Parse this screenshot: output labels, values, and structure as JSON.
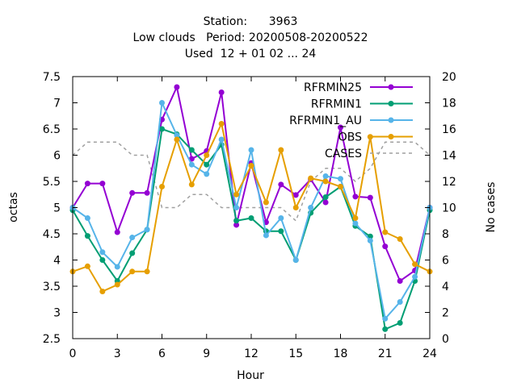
{
  "chart_data": {
    "type": "line",
    "title_lines": [
      "Station:      3963",
      "Low clouds   Period: 20200508-20200522",
      "Used  12 + 01 02 ... 24"
    ],
    "xlabel": "Hour",
    "ylabel": "octas",
    "y2label": "No cases",
    "xlim": [
      0,
      24
    ],
    "ylim": [
      2.5,
      7.5
    ],
    "y2lim": [
      0,
      20
    ],
    "xticks": [
      0,
      3,
      6,
      9,
      12,
      15,
      18,
      21,
      24
    ],
    "yticks": [
      2.5,
      3,
      3.5,
      4,
      4.5,
      5,
      5.5,
      6,
      6.5,
      7,
      7.5
    ],
    "y2ticks": [
      0,
      2,
      4,
      6,
      8,
      10,
      12,
      14,
      16,
      18,
      20
    ],
    "grid": false,
    "legend_position": "top-right",
    "x": [
      0,
      1,
      2,
      3,
      4,
      5,
      6,
      7,
      8,
      9,
      10,
      11,
      12,
      13,
      14,
      15,
      16,
      17,
      18,
      19,
      20,
      21,
      22,
      23,
      24
    ],
    "series": [
      {
        "name": "RFRMIN25",
        "color": "#9400d3",
        "marker": "circle",
        "dash": "none",
        "values": [
          5.0,
          5.46,
          5.46,
          4.53,
          5.28,
          5.28,
          6.68,
          7.3,
          5.93,
          6.08,
          7.2,
          4.67,
          5.85,
          4.72,
          5.44,
          5.24,
          5.54,
          5.1,
          6.53,
          5.21,
          5.19,
          4.26,
          3.6,
          3.8,
          5.0
        ]
      },
      {
        "name": "RFRMIN1",
        "color": "#009e73",
        "marker": "circle",
        "dash": "none",
        "values": [
          4.95,
          4.46,
          4.0,
          3.6,
          4.13,
          4.58,
          6.5,
          6.4,
          6.1,
          5.82,
          6.2,
          4.75,
          4.8,
          4.55,
          4.55,
          4.0,
          4.9,
          5.2,
          5.4,
          4.65,
          4.45,
          2.68,
          2.8,
          3.6,
          4.95
        ]
      },
      {
        "name": "RFRMIN1_AU",
        "color": "#56b4e9",
        "marker": "circle",
        "dash": "none",
        "values": [
          5.0,
          4.8,
          4.15,
          3.87,
          4.43,
          4.58,
          7.0,
          6.38,
          5.82,
          5.64,
          6.3,
          5.0,
          6.1,
          4.47,
          4.8,
          4.0,
          5.0,
          5.6,
          5.55,
          4.7,
          4.37,
          2.88,
          3.2,
          3.68,
          5.0
        ]
      },
      {
        "name": "OBS",
        "color": "#e69f00",
        "marker": "circle",
        "dash": "none",
        "values": [
          3.78,
          3.88,
          3.4,
          3.53,
          3.78,
          3.78,
          5.4,
          6.3,
          5.44,
          6.0,
          6.6,
          5.25,
          5.8,
          5.1,
          6.1,
          5.0,
          5.56,
          5.5,
          5.4,
          4.8,
          6.35,
          4.53,
          4.4,
          3.92,
          3.78
        ]
      },
      {
        "name": "CASES",
        "color": "#a0a0a0",
        "marker": "none",
        "dash": "dashed",
        "axis": "y2",
        "values": [
          14,
          15,
          15,
          15,
          14,
          14,
          10,
          10,
          11,
          11,
          10,
          10,
          10,
          10,
          10,
          9,
          12,
          13,
          13,
          12,
          13,
          15,
          15,
          15,
          14
        ]
      }
    ]
  }
}
